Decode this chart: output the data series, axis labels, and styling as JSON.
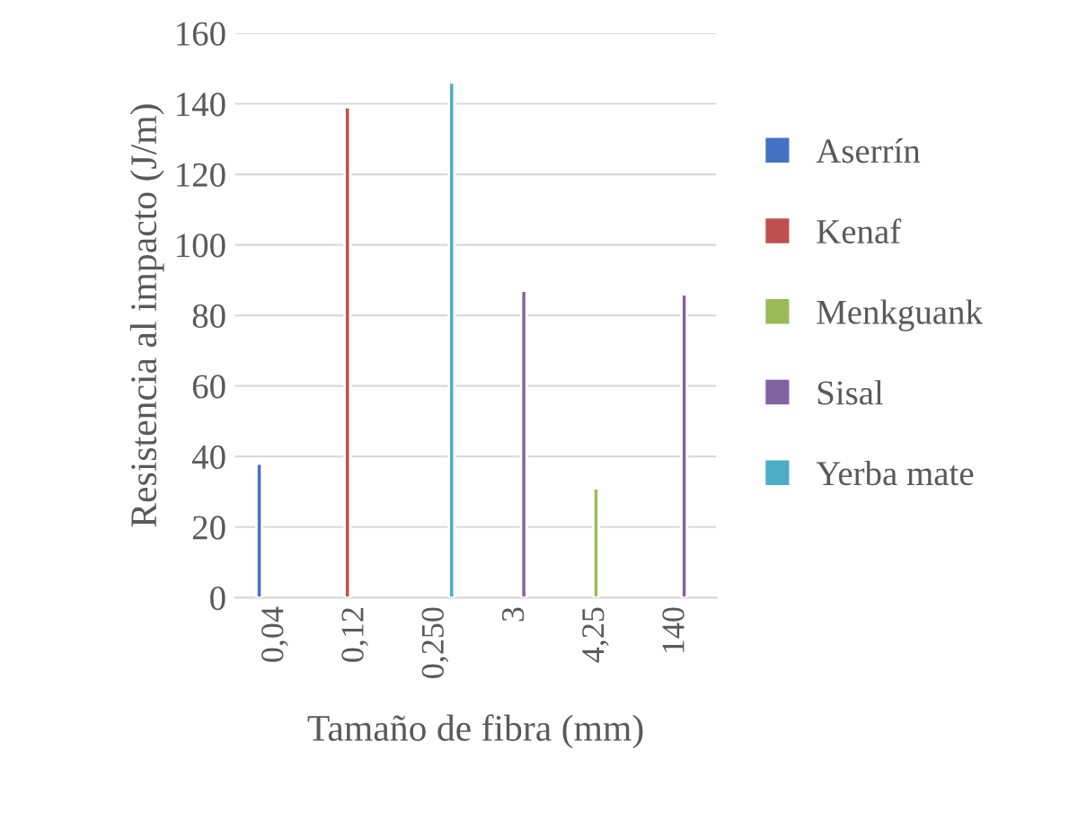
{
  "chart_data": {
    "type": "bar",
    "xlabel": "Tamaño de fibra (mm)",
    "ylabel": "Resistencia al impacto (J/m)",
    "categories": [
      "0,04",
      "0,12",
      "0,250",
      "3",
      "4,25",
      "140"
    ],
    "series": [
      {
        "name": "Aserrín",
        "color": "#4472c4",
        "values": [
          38,
          null,
          null,
          null,
          null,
          null
        ]
      },
      {
        "name": "Kenaf",
        "color": "#c0504d",
        "values": [
          null,
          139,
          null,
          null,
          null,
          null
        ]
      },
      {
        "name": "Menkguank",
        "color": "#9bbb59",
        "values": [
          null,
          null,
          null,
          null,
          31,
          null
        ]
      },
      {
        "name": "Sisal",
        "color": "#8064a2",
        "values": [
          null,
          null,
          null,
          87,
          null,
          86
        ]
      },
      {
        "name": "Yerba mate",
        "color": "#4bacc6",
        "values": [
          null,
          null,
          146,
          null,
          null,
          null
        ]
      }
    ],
    "ylim": [
      0,
      160
    ],
    "yticks": [
      0,
      20,
      40,
      60,
      80,
      100,
      120,
      140,
      160
    ],
    "grid": "y",
    "legend": "right"
  }
}
